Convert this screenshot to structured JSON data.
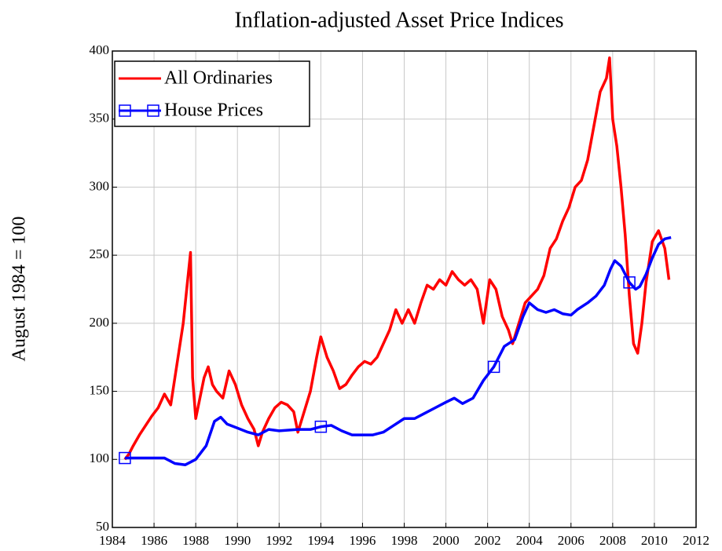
{
  "chart_data": {
    "type": "line",
    "title": "Inflation-adjusted Asset Price Indices",
    "y_label": "August 1984 = 100",
    "xlim": [
      1984,
      2012
    ],
    "xticks": [
      1984,
      1986,
      1988,
      1990,
      1992,
      1994,
      1996,
      1998,
      2000,
      2002,
      2004,
      2006,
      2008,
      2010,
      2012
    ],
    "ylim": [
      50,
      400
    ],
    "yticks": [
      50,
      100,
      150,
      200,
      250,
      300,
      350,
      400
    ],
    "grid": true,
    "legend": "upper left",
    "series": [
      {
        "name": "All Ordinaries",
        "color": "#ff0000",
        "marker": "none",
        "x": [
          1984.6,
          1984.8,
          1985.0,
          1985.3,
          1985.6,
          1985.9,
          1986.2,
          1986.5,
          1986.8,
          1987.0,
          1987.2,
          1987.4,
          1987.6,
          1987.75,
          1987.85,
          1988.0,
          1988.2,
          1988.4,
          1988.6,
          1988.8,
          1989.0,
          1989.3,
          1989.6,
          1989.9,
          1990.2,
          1990.5,
          1990.8,
          1991.0,
          1991.2,
          1991.5,
          1991.8,
          1992.1,
          1992.4,
          1992.7,
          1992.9,
          1993.2,
          1993.5,
          1993.8,
          1994.0,
          1994.3,
          1994.6,
          1994.9,
          1995.2,
          1995.5,
          1995.8,
          1996.1,
          1996.4,
          1996.7,
          1997.0,
          1997.3,
          1997.6,
          1997.9,
          1998.2,
          1998.5,
          1998.8,
          1999.1,
          1999.4,
          1999.7,
          2000.0,
          2000.3,
          2000.6,
          2000.9,
          2001.2,
          2001.5,
          2001.8,
          2002.1,
          2002.4,
          2002.7,
          2003.0,
          2003.2,
          2003.5,
          2003.8,
          2004.1,
          2004.4,
          2004.7,
          2005.0,
          2005.3,
          2005.6,
          2005.9,
          2006.2,
          2006.5,
          2006.8,
          2007.1,
          2007.4,
          2007.7,
          2007.85,
          2008.0,
          2008.2,
          2008.4,
          2008.6,
          2008.8,
          2009.0,
          2009.2,
          2009.4,
          2009.6,
          2009.9,
          2010.2,
          2010.5,
          2010.7
        ],
        "values": [
          100,
          104,
          110,
          118,
          125,
          132,
          138,
          148,
          140,
          160,
          180,
          200,
          230,
          252,
          160,
          130,
          145,
          160,
          168,
          155,
          150,
          145,
          165,
          155,
          140,
          130,
          122,
          110,
          120,
          130,
          138,
          142,
          140,
          135,
          120,
          135,
          150,
          175,
          190,
          175,
          165,
          152,
          155,
          162,
          168,
          172,
          170,
          175,
          185,
          195,
          210,
          200,
          210,
          200,
          215,
          228,
          225,
          232,
          228,
          238,
          232,
          228,
          232,
          225,
          200,
          232,
          225,
          205,
          195,
          185,
          200,
          215,
          220,
          225,
          235,
          255,
          262,
          275,
          285,
          300,
          305,
          320,
          345,
          370,
          380,
          395,
          350,
          330,
          300,
          265,
          220,
          185,
          178,
          200,
          230,
          260,
          268,
          255,
          232
        ]
      },
      {
        "name": "House Prices",
        "color": "#0000ff",
        "marker": "square",
        "x": [
          1984.6,
          1985.5,
          1986.5,
          1987.0,
          1987.5,
          1988.0,
          1988.5,
          1988.9,
          1989.2,
          1989.5,
          1990.0,
          1990.5,
          1991.0,
          1991.5,
          1992.0,
          1992.9,
          1993.5,
          1994.0,
          1994.5,
          1995.0,
          1995.5,
          1996.0,
          1996.5,
          1997.0,
          1997.5,
          1998.0,
          1998.5,
          1999.0,
          1999.5,
          2000.0,
          2000.4,
          2000.8,
          2001.3,
          2001.8,
          2002.3,
          2002.8,
          2003.3,
          2003.7,
          2004.0,
          2004.4,
          2004.8,
          2005.2,
          2005.6,
          2006.0,
          2006.3,
          2006.8,
          2007.2,
          2007.6,
          2007.9,
          2008.1,
          2008.4,
          2008.8,
          2009.1,
          2009.3,
          2009.6,
          2009.9,
          2010.2,
          2010.5,
          2010.8
        ],
        "values": [
          101,
          101,
          101,
          97,
          96,
          100,
          110,
          128,
          131,
          126,
          123,
          120,
          118,
          122,
          121,
          122,
          122,
          124,
          125,
          121,
          118,
          118,
          118,
          120,
          125,
          130,
          130,
          134,
          138,
          142,
          145,
          141,
          145,
          158,
          168,
          183,
          188,
          205,
          215,
          210,
          208,
          210,
          207,
          206,
          210,
          215,
          220,
          228,
          240,
          246,
          242,
          230,
          225,
          227,
          236,
          248,
          258,
          262,
          263
        ]
      }
    ]
  }
}
